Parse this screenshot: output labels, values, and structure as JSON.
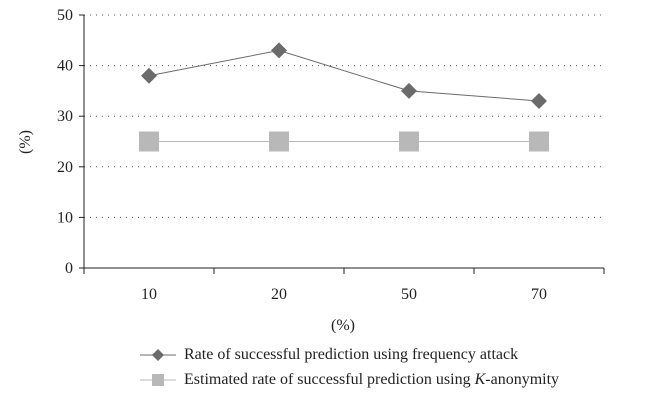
{
  "chart_data": {
    "type": "line",
    "categories": [
      "10",
      "20",
      "50",
      "70"
    ],
    "xlabel": "(%)",
    "ylabel": "(%)",
    "ylim": [
      0,
      50
    ],
    "yticks": [
      0,
      10,
      20,
      30,
      40,
      50
    ],
    "grid": "horizontal dotted",
    "legend_position": "bottom",
    "series": [
      {
        "name": "Rate of successful prediction using frequency attack",
        "values": [
          38,
          43,
          35,
          33
        ],
        "color": "#6b6b6b",
        "marker": "diamond"
      },
      {
        "name_prefix": "Estimated rate of successful prediction using ",
        "name_emph": "K",
        "name_suffix": "-anonymity",
        "values": [
          25,
          25,
          25,
          25
        ],
        "color": "#b8b8b8",
        "marker": "square"
      }
    ]
  }
}
